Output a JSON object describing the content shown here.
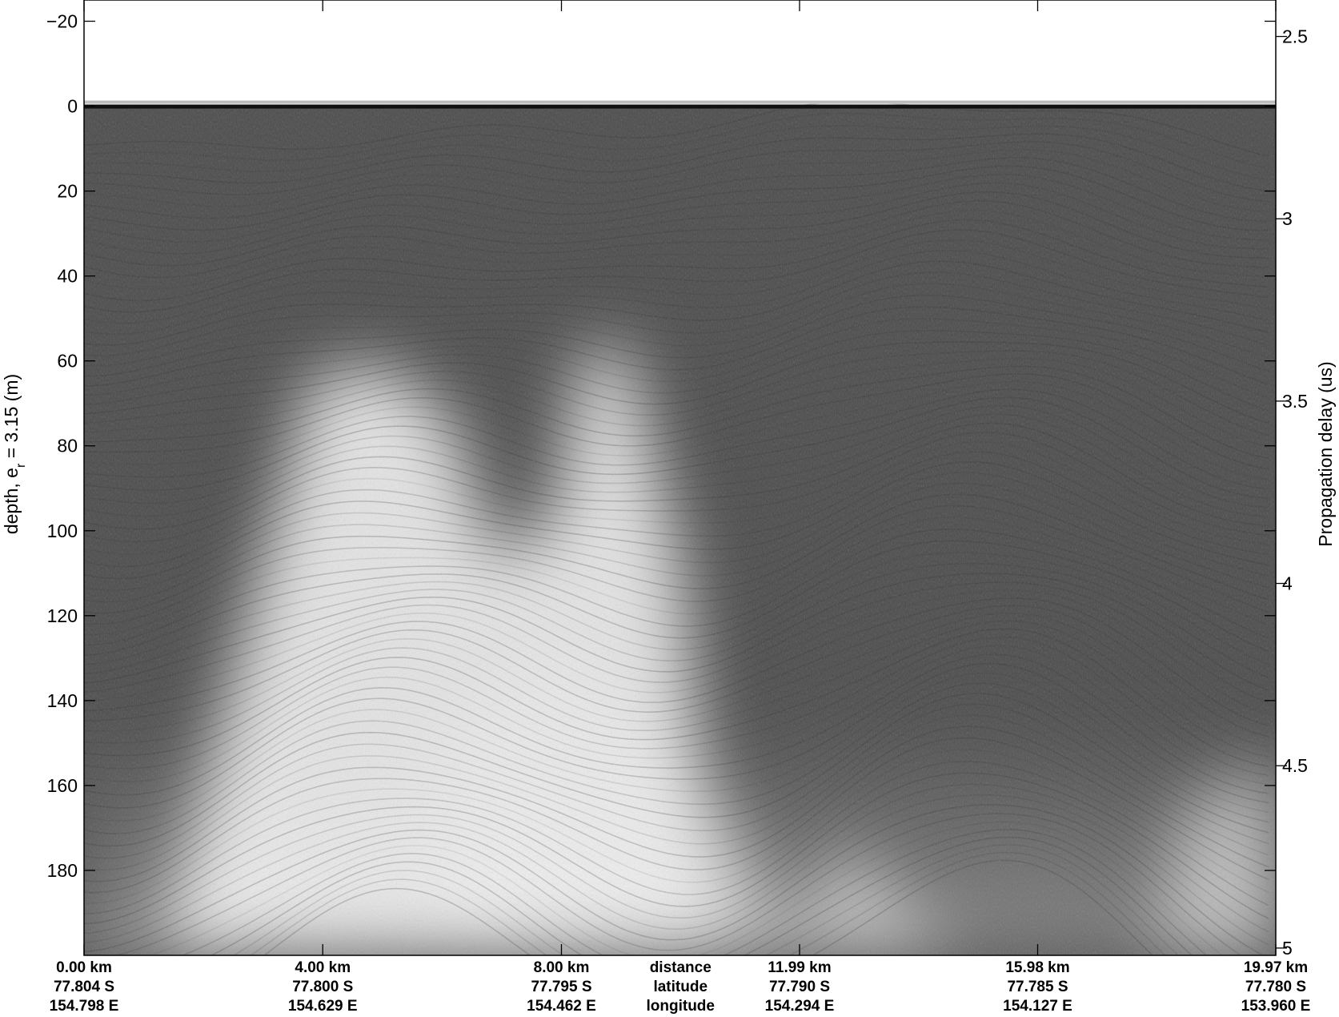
{
  "chart_data": {
    "type": "heatmap",
    "title": "",
    "colormap": "gray",
    "ylabel_left_main": "depth, e",
    "ylabel_left_sub": "r",
    "ylabel_left_tail": " = 3.15 (m)",
    "ylabel_right": "Propagation delay (us)",
    "ylim_left": [
      -25,
      200
    ],
    "yticks_left": [
      -20,
      0,
      20,
      40,
      60,
      80,
      100,
      120,
      140,
      160,
      180
    ],
    "ytick_labels_left": [
      "−20",
      "0",
      "20",
      "40",
      "60",
      "80",
      "100",
      "120",
      "140",
      "160",
      "180"
    ],
    "ylim_right": [
      2.4,
      5.02
    ],
    "yticks_right": [
      2.5,
      3,
      3.5,
      4,
      4.5,
      5
    ],
    "ytick_labels_right": [
      "2.5",
      "3",
      "3.5",
      "4",
      "4.5",
      "5"
    ],
    "x_range_km": [
      0,
      19.97
    ],
    "x_ticks_km": [
      0,
      4.0,
      8.0,
      11.99,
      15.98,
      19.97
    ],
    "x_tick_labels": [
      {
        "distance": "0.00 km",
        "latitude": "77.804 S",
        "longitude": "154.798 E"
      },
      {
        "distance": "4.00 km",
        "latitude": "77.800 S",
        "longitude": "154.629 E"
      },
      {
        "distance": "8.00 km",
        "latitude": "77.795 S",
        "longitude": "154.462 E"
      },
      {
        "distance": "11.99 km",
        "latitude": "77.790 S",
        "longitude": "154.294 E"
      },
      {
        "distance": "15.98 km",
        "latitude": "77.785 S",
        "longitude": "154.127 E"
      },
      {
        "distance": "19.97 km",
        "latitude": "77.780 S",
        "longitude": "153.960 E"
      }
    ],
    "x_row_names": {
      "distance": "distance",
      "latitude": "latitude",
      "longitude": "longitude"
    },
    "surface_depth": 0,
    "dark_base_color": "#4a4a4a",
    "bright_color": "#ececec",
    "layer_color": "#2a2a2a"
  }
}
